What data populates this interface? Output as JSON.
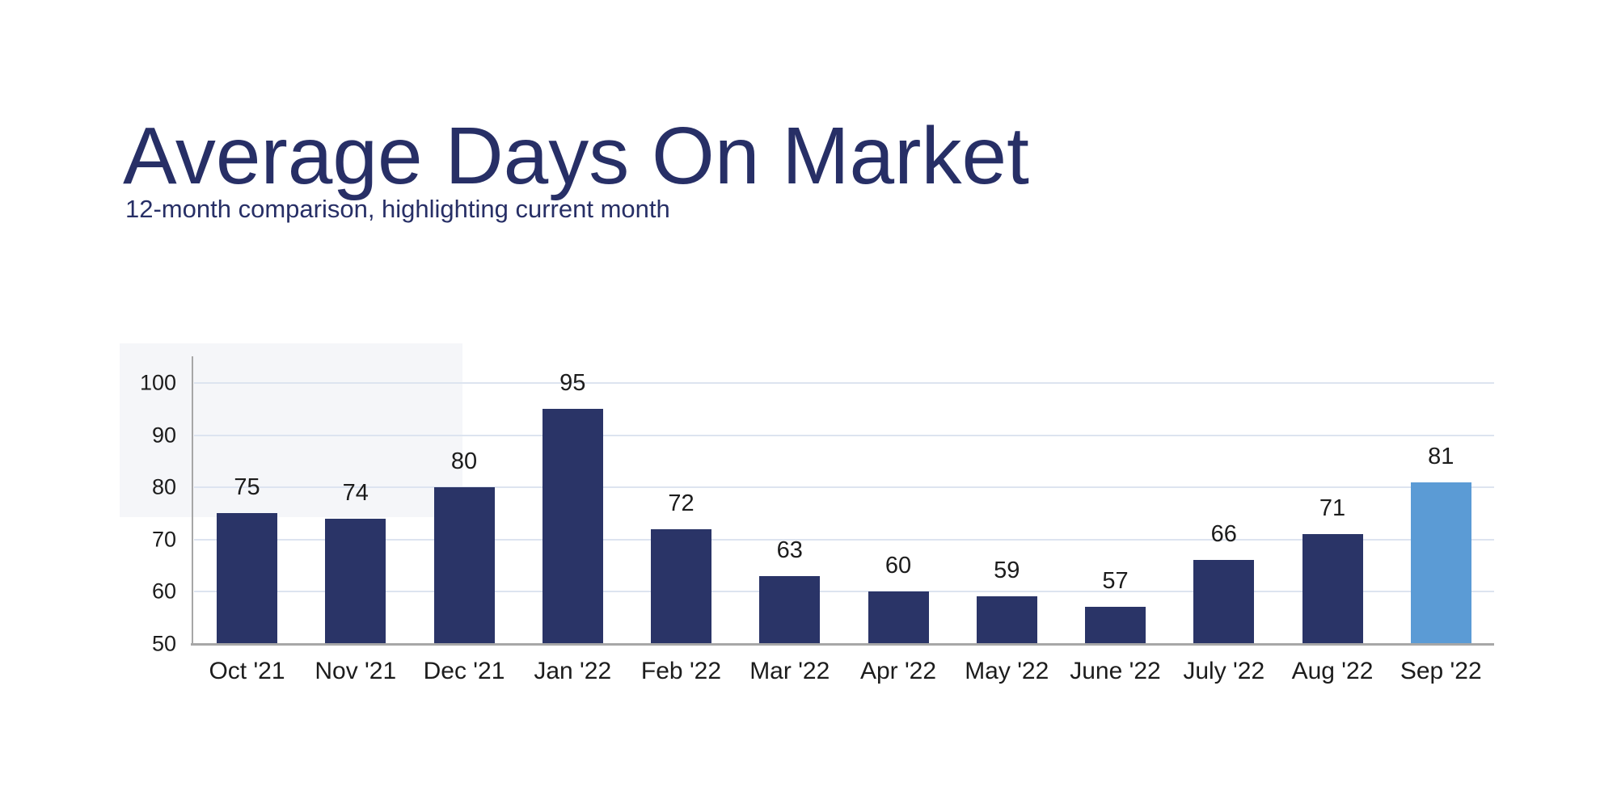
{
  "header": {
    "title": "Average Days On Market",
    "subtitle": "12-month comparison, highlighting current month"
  },
  "chart_data": {
    "type": "bar",
    "title": "Average Days On Market",
    "subtitle": "12-month comparison, highlighting current month",
    "categories": [
      "Oct '21",
      "Nov '21",
      "Dec '21",
      "Jan '22",
      "Feb '22",
      "Mar '22",
      "Apr '22",
      "May '22",
      "June '22",
      "July '22",
      "Aug '22",
      "Sep '22"
    ],
    "values": [
      75,
      74,
      80,
      95,
      72,
      63,
      60,
      59,
      57,
      66,
      71,
      81
    ],
    "value_labels": [
      "75",
      "74",
      "80",
      "95",
      "72",
      "63",
      "60",
      "59",
      "57",
      "66",
      "71",
      "81"
    ],
    "highlight_index": 11,
    "highlighted_category": "Sep '22",
    "xlabel": "",
    "ylabel": "",
    "ylim": [
      50,
      100
    ],
    "yticks": [
      50,
      60,
      70,
      80,
      90,
      100
    ],
    "grid": true,
    "legend": false,
    "colors": {
      "bar": "#2a3467",
      "highlight_bar": "#5b9bd5",
      "gridline": "#dde4f0",
      "axis_line": "#a7a7a7",
      "tick_text": "#1c1c1c",
      "value_text": "#1c1c1c",
      "title_text": "#272f66",
      "subtitle_text": "#272f66"
    }
  }
}
